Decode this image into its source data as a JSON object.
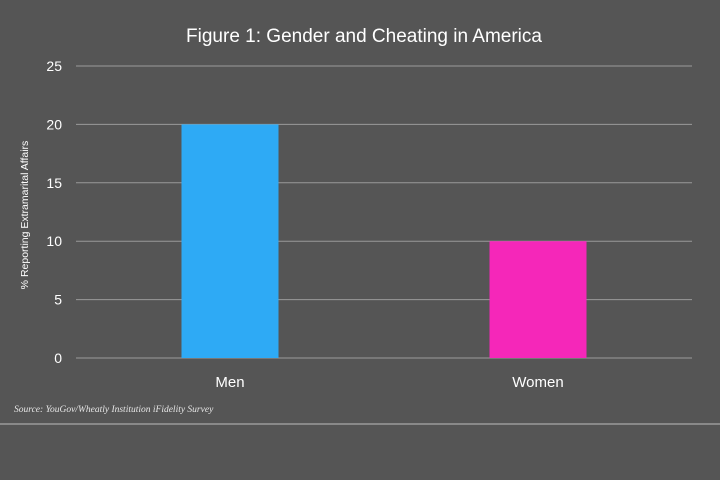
{
  "chart_data": {
    "type": "bar",
    "title": "Figure 1: Gender and Cheating in America",
    "xlabel": "",
    "ylabel": "% Reporting Extramarital Affairs",
    "categories": [
      "Men",
      "Women"
    ],
    "values": [
      20,
      10
    ],
    "colors": [
      "#2eaaf5",
      "#f527b9"
    ],
    "ylim": [
      0,
      25
    ],
    "yticks": [
      0,
      5,
      10,
      15,
      20,
      25
    ],
    "grid": true,
    "source": "Source: YouGov/Wheatly Institution iFidelity Survey"
  },
  "theme": {
    "background": "#555555",
    "text": "#ffffff",
    "gridline": "#9a9a9a"
  }
}
